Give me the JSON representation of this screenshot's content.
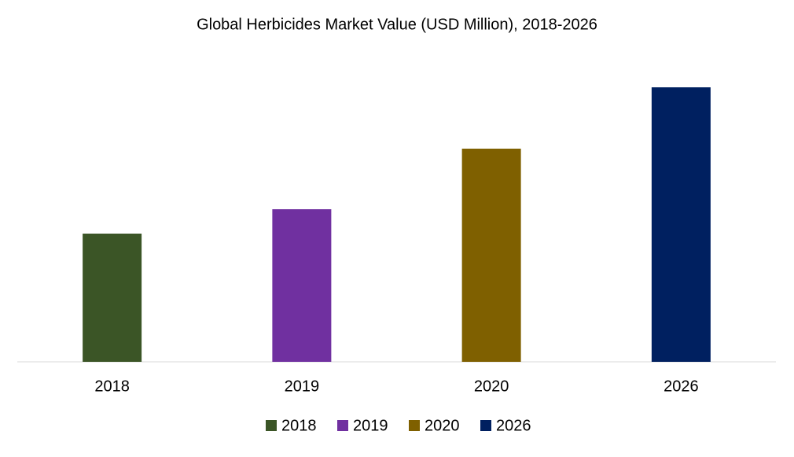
{
  "chart_data": {
    "type": "bar",
    "title": "Global Herbicides Market Value (USD Million), 2018-2026",
    "categories": [
      "2018",
      "2019",
      "2020",
      "2026"
    ],
    "values": [
      163,
      194,
      271,
      349
    ],
    "colors": [
      "#3b5526",
      "#7030a0",
      "#7f6000",
      "#002060"
    ],
    "ylim": [
      0,
      380
    ],
    "legend": "bottom"
  }
}
